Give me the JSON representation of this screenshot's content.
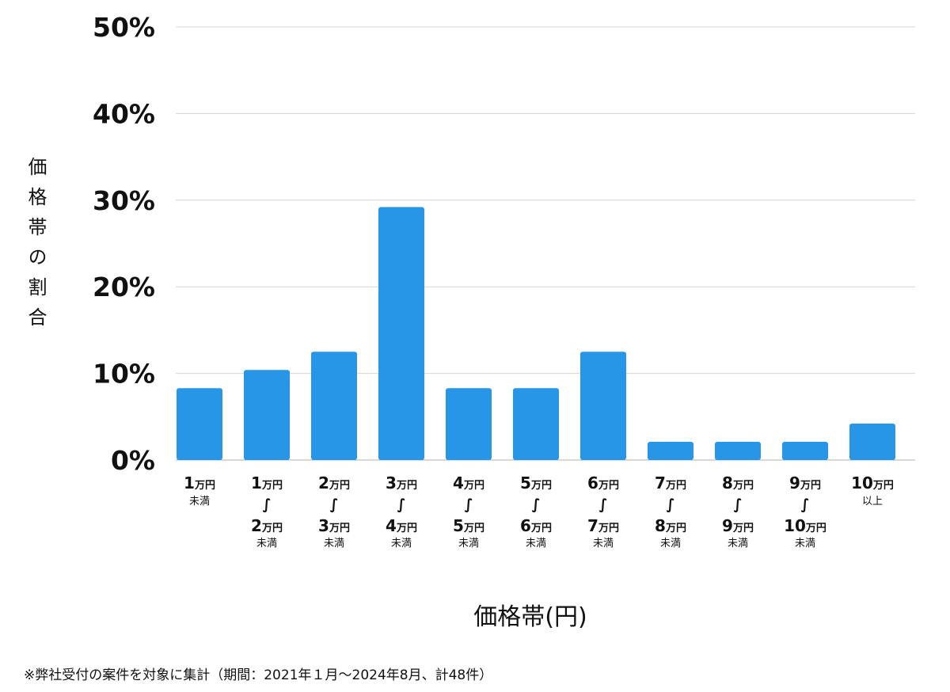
{
  "chart_data": {
    "type": "bar",
    "xlabel": "価格帯(円)",
    "ylabel": "価格帯の割合",
    "footnote": "※弊社受付の案件を対象に集計（期間：2021年１月～2024年8月、計48件）",
    "ylim": [
      0,
      50
    ],
    "yticks": [
      0,
      10,
      20,
      30,
      40,
      50
    ],
    "ytick_labels": [
      "0%",
      "10%",
      "20%",
      "30%",
      "40%",
      "50%"
    ],
    "grid": true,
    "bar_color": "#2896e6",
    "grid_color": "#d4d4d4",
    "unit": "万円",
    "range_separator": "∫",
    "categories": [
      {
        "from": "1",
        "to": null,
        "suffix": "未満"
      },
      {
        "from": "1",
        "to": "2",
        "suffix": "未満"
      },
      {
        "from": "2",
        "to": "3",
        "suffix": "未満"
      },
      {
        "from": "3",
        "to": "4",
        "suffix": "未満"
      },
      {
        "from": "4",
        "to": "5",
        "suffix": "未満"
      },
      {
        "from": "5",
        "to": "6",
        "suffix": "未満"
      },
      {
        "from": "6",
        "to": "7",
        "suffix": "未満"
      },
      {
        "from": "7",
        "to": "8",
        "suffix": "未満"
      },
      {
        "from": "8",
        "to": "9",
        "suffix": "未満"
      },
      {
        "from": "9",
        "to": "10",
        "suffix": "未満"
      },
      {
        "from": "10",
        "to": null,
        "suffix": "以上"
      }
    ],
    "values": [
      8.3,
      10.4,
      12.5,
      29.2,
      8.3,
      8.3,
      12.5,
      2.1,
      2.1,
      2.1,
      4.2
    ]
  }
}
